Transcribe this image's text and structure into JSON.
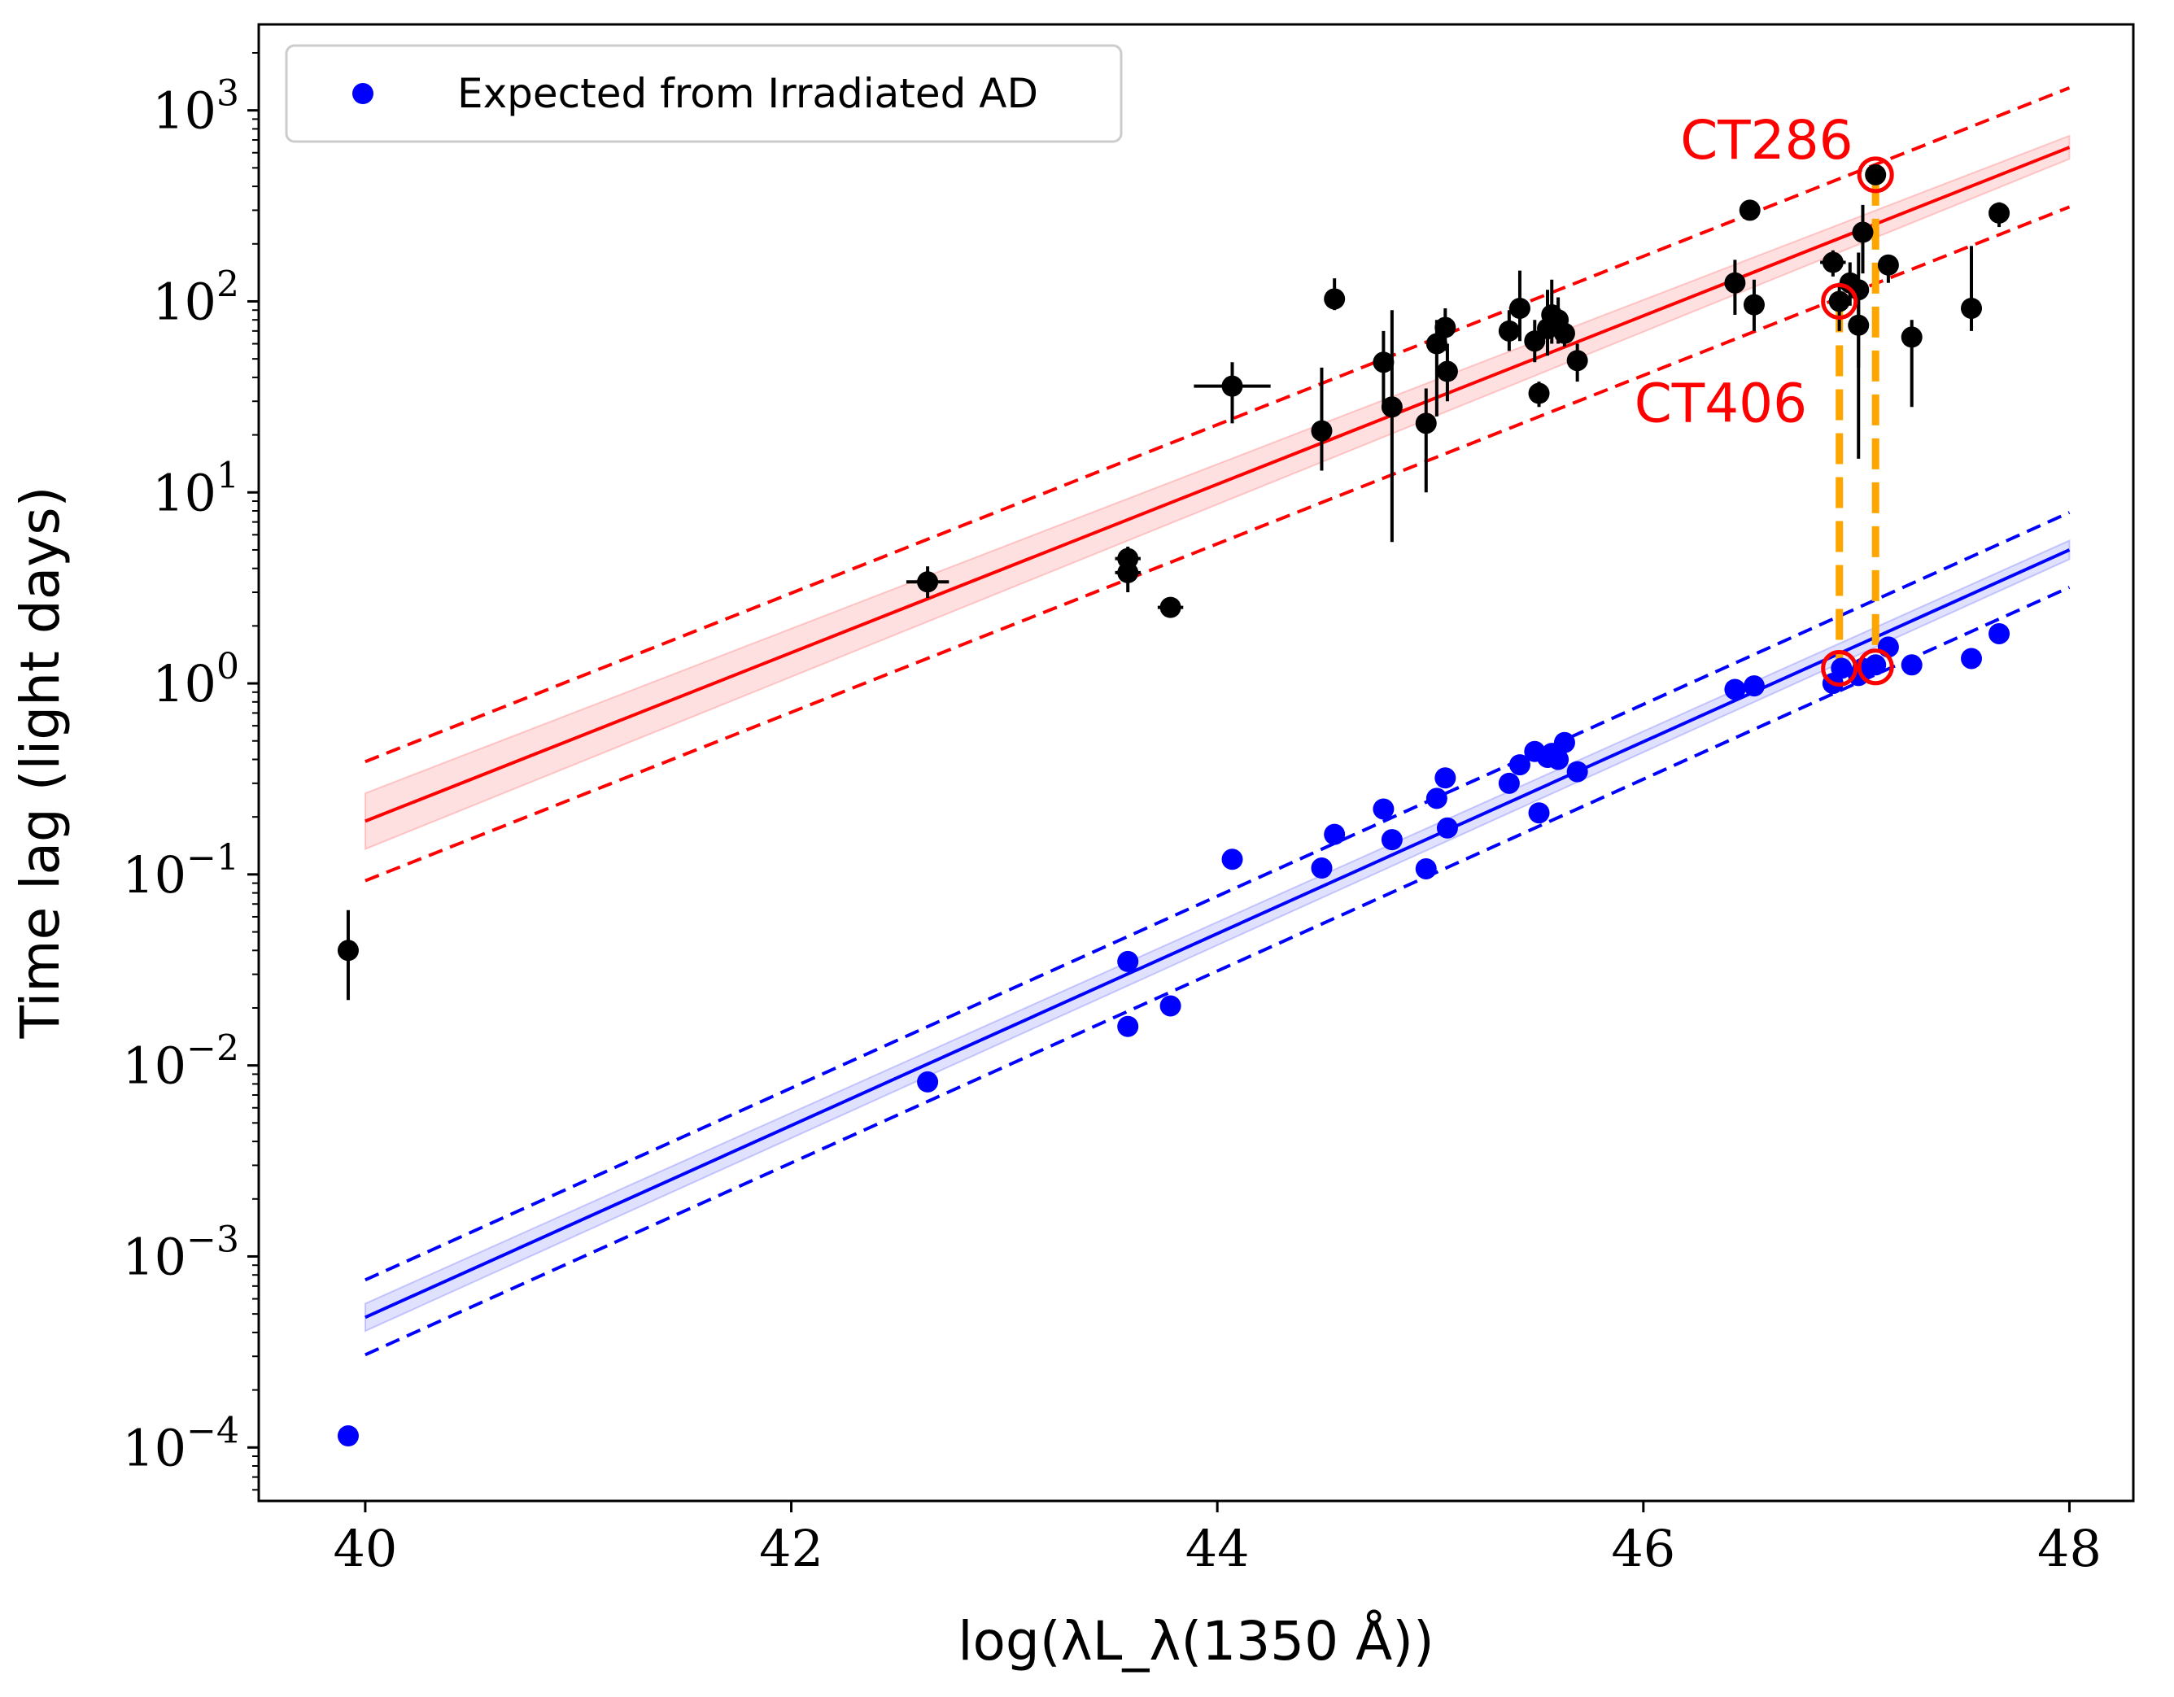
{
  "chart_data": {
    "type": "scatter",
    "title": "",
    "xlabel": "log(λL_λ(1350 Å))",
    "ylabel": "Time lag (light days)",
    "xlim": [
      39.5,
      48.3
    ],
    "ylim_log10": [
      -4.28,
      3.45
    ],
    "y_scale": "log",
    "x_ticks": [
      "40",
      "42",
      "44",
      "46",
      "48"
    ],
    "y_ticks": [
      {
        "base": "10",
        "exp": "3"
      },
      {
        "base": "10",
        "exp": "2"
      },
      {
        "base": "10",
        "exp": "1"
      },
      {
        "base": "10",
        "exp": "0"
      },
      {
        "base": "10",
        "exp": "−1"
      },
      {
        "base": "10",
        "exp": "−2"
      },
      {
        "base": "10",
        "exp": "−3"
      },
      {
        "base": "10",
        "exp": "−4"
      }
    ],
    "grid": false,
    "legend": {
      "placement": "top-left",
      "entries": [
        "Expected from Irradiated AD"
      ]
    },
    "colors": {
      "observed": "#000000",
      "expected": "#0000ff",
      "fit_observed": "#ff0000",
      "fit_expected": "#0000ff",
      "highlight": "#ff0000",
      "connector": "#ffa500"
    },
    "series": [
      {
        "name": "Expected from Irradiated AD",
        "color": "#0000ff",
        "points": [
          [
            39.92,
            0.000115
          ],
          [
            42.64,
            0.0082
          ],
          [
            43.58,
            0.035
          ],
          [
            43.58,
            0.016
          ],
          [
            43.78,
            0.0205
          ],
          [
            44.07,
            0.12
          ],
          [
            44.49,
            0.108
          ],
          [
            44.55,
            0.162
          ],
          [
            44.78,
            0.22
          ],
          [
            44.82,
            0.152
          ],
          [
            44.98,
            0.107
          ],
          [
            45.03,
            0.25
          ],
          [
            45.07,
            0.32
          ],
          [
            45.08,
            0.175
          ],
          [
            45.37,
            0.3
          ],
          [
            45.42,
            0.375
          ],
          [
            45.49,
            0.44
          ],
          [
            45.51,
            0.21
          ],
          [
            45.55,
            0.41
          ],
          [
            45.57,
            0.43
          ],
          [
            45.6,
            0.4
          ],
          [
            45.63,
            0.49
          ],
          [
            45.69,
            0.345
          ],
          [
            46.43,
            0.93
          ],
          [
            46.52,
            0.97
          ],
          [
            46.89,
            1.0
          ],
          [
            46.93,
            1.2
          ],
          [
            47.01,
            1.1
          ],
          [
            47.03,
            1.2
          ],
          [
            47.09,
            1.25
          ],
          [
            47.15,
            1.55
          ],
          [
            47.26,
            1.25
          ],
          [
            47.54,
            1.35
          ],
          [
            47.67,
            1.82
          ]
        ]
      },
      {
        "name": "",
        "color": "#000000",
        "points": [
          {
            "x": 39.92,
            "y": 0.04,
            "ylo": 0.022,
            "yhi": 0.065
          },
          {
            "x": 42.64,
            "y": 3.4,
            "ylo": 2.8,
            "yhi": 4.1,
            "xerr": 0.1
          },
          {
            "x": 43.58,
            "y": 4.5,
            "ylo": 3.8,
            "yhi": 5.2,
            "xerr": 0.06
          },
          {
            "x": 43.58,
            "y": 3.8,
            "ylo": 3.0,
            "yhi": 4.6,
            "xerr": 0.06
          },
          {
            "x": 43.78,
            "y": 2.5,
            "ylo": 2.3,
            "yhi": 2.7,
            "xerr": 0.06
          },
          {
            "x": 44.07,
            "y": 36,
            "ylo": 23,
            "yhi": 48,
            "xerr": 0.18
          },
          {
            "x": 44.49,
            "y": 21,
            "ylo": 13,
            "yhi": 45
          },
          {
            "x": 44.55,
            "y": 103,
            "ylo": 90,
            "yhi": 132
          },
          {
            "x": 44.78,
            "y": 48,
            "ylo": 28,
            "yhi": 70
          },
          {
            "x": 44.82,
            "y": 28,
            "ylo": 5.5,
            "yhi": 90
          },
          {
            "x": 44.98,
            "y": 23,
            "ylo": 10,
            "yhi": 35
          },
          {
            "x": 45.03,
            "y": 60,
            "ylo": 25,
            "yhi": 80
          },
          {
            "x": 45.07,
            "y": 73,
            "ylo": 55,
            "yhi": 92
          },
          {
            "x": 45.08,
            "y": 43,
            "ylo": 30,
            "yhi": 60
          },
          {
            "x": 45.37,
            "y": 70,
            "ylo": 55,
            "yhi": 90
          },
          {
            "x": 45.42,
            "y": 92,
            "ylo": 62,
            "yhi": 145
          },
          {
            "x": 45.49,
            "y": 62,
            "ylo": 48,
            "yhi": 80
          },
          {
            "x": 45.51,
            "y": 33,
            "ylo": 28,
            "yhi": 38
          },
          {
            "x": 45.55,
            "y": 72,
            "ylo": 52,
            "yhi": 115
          },
          {
            "x": 45.57,
            "y": 85,
            "ylo": 60,
            "yhi": 130
          },
          {
            "x": 45.6,
            "y": 80,
            "ylo": 60,
            "yhi": 105
          },
          {
            "x": 45.63,
            "y": 68,
            "ylo": 58,
            "yhi": 80
          },
          {
            "x": 45.69,
            "y": 49,
            "ylo": 38,
            "yhi": 60
          },
          {
            "x": 46.43,
            "y": 125,
            "ylo": 85,
            "yhi": 165
          },
          {
            "x": 46.5,
            "y": 300,
            "ylo": 290,
            "yhi": 310
          },
          {
            "x": 46.52,
            "y": 96,
            "ylo": 70,
            "yhi": 130
          },
          {
            "x": 46.89,
            "y": 160,
            "ylo": 135,
            "yhi": 185,
            "xerr": 0.06
          },
          {
            "x": 46.92,
            "y": 100,
            "ylo": 70,
            "yhi": 125
          },
          {
            "x": 46.97,
            "y": 125,
            "ylo": 95,
            "yhi": 160
          },
          {
            "x": 47.01,
            "y": 115,
            "ylo": 15,
            "yhi": 180
          },
          {
            "x": 47.01,
            "y": 75,
            "ylo": 45,
            "yhi": 110
          },
          {
            "x": 47.03,
            "y": 230,
            "ylo": 140,
            "yhi": 320
          },
          {
            "x": 47.09,
            "y": 460,
            "ylo": 420,
            "yhi": 500
          },
          {
            "x": 47.15,
            "y": 155,
            "ylo": 125,
            "yhi": 175
          },
          {
            "x": 47.26,
            "y": 65,
            "ylo": 28,
            "yhi": 80
          },
          {
            "x": 47.54,
            "y": 92,
            "ylo": 70,
            "yhi": 195
          },
          {
            "x": 47.67,
            "y": 290,
            "ylo": 245,
            "yhi": 330
          }
        ]
      }
    ],
    "fits": [
      {
        "color": "#ff0000",
        "y_at_40": 0.19,
        "y_at_48": 640,
        "scatter_factor": 2.05,
        "band_factor_40": 1.4,
        "band_factor_48": 1.15
      },
      {
        "color": "#0000ff",
        "y_at_40": 0.00048,
        "y_at_48": 5.0,
        "scatter_factor": 1.57,
        "band_factor_40": 1.18,
        "band_factor_48": 1.12
      }
    ],
    "highlights": [
      {
        "label": "CT286",
        "lag_observed": 460,
        "lag_expected": 1.22,
        "x": 47.09
      },
      {
        "label": "CT406",
        "lag_observed": 100,
        "lag_expected": 1.2,
        "x": 46.92
      }
    ]
  }
}
